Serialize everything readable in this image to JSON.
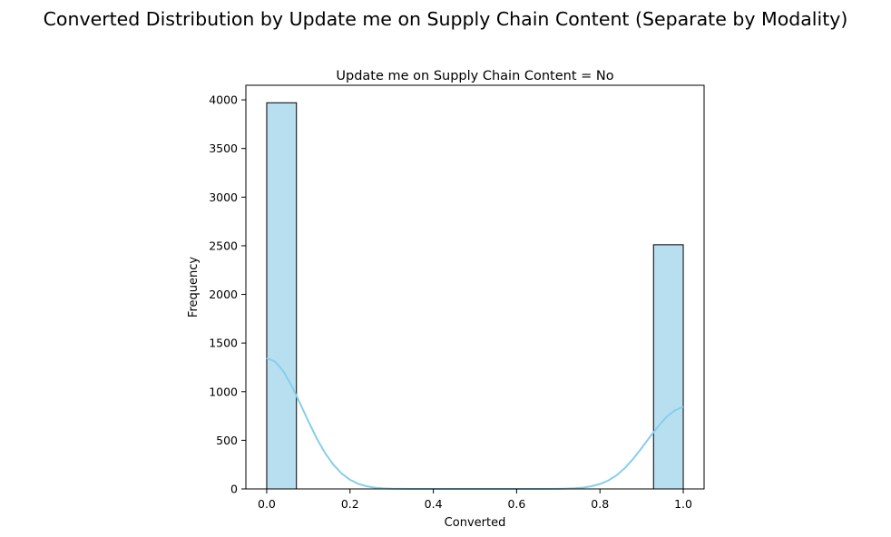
{
  "chart_data": {
    "type": "bar",
    "subtype": "histogram-with-kde",
    "suptitle": "Converted Distribution by Update me on Supply Chain Content (Separate by Modality)",
    "title": "Update me on Supply Chain Content = No",
    "xlabel": "Converted",
    "ylabel": "Frequency",
    "xlim": [
      -0.05,
      1.05
    ],
    "ylim": [
      0,
      4150
    ],
    "x_ticks": [
      0.0,
      0.2,
      0.4,
      0.6,
      0.8,
      1.0
    ],
    "x_tick_labels": [
      "0.0",
      "0.2",
      "0.4",
      "0.6",
      "0.8",
      "1.0"
    ],
    "y_ticks": [
      0,
      500,
      1000,
      1500,
      2000,
      2500,
      3000,
      3500,
      4000
    ],
    "y_tick_labels": [
      "0",
      "500",
      "1000",
      "1500",
      "2000",
      "2500",
      "3000",
      "3500",
      "4000"
    ],
    "bins": [
      {
        "x0": 0.0,
        "x1": 0.0714,
        "value": 3970
      },
      {
        "x0": 0.9286,
        "x1": 1.0,
        "value": 2510
      }
    ],
    "kde": {
      "x": [
        0.0,
        0.02,
        0.04,
        0.06,
        0.08,
        0.1,
        0.12,
        0.14,
        0.16,
        0.18,
        0.2,
        0.22,
        0.24,
        0.26,
        0.28,
        0.3,
        0.35,
        0.4,
        0.5,
        0.6,
        0.65,
        0.7,
        0.72,
        0.74,
        0.76,
        0.78,
        0.8,
        0.82,
        0.84,
        0.86,
        0.88,
        0.9,
        0.92,
        0.94,
        0.96,
        0.98,
        1.0
      ],
      "y": [
        1345,
        1310,
        1210,
        1060,
        880,
        695,
        520,
        370,
        250,
        158,
        94,
        52,
        27,
        13,
        6,
        2,
        0,
        0,
        0,
        0,
        0,
        1,
        3,
        7,
        14,
        28,
        50,
        86,
        140,
        215,
        310,
        420,
        535,
        645,
        740,
        808,
        845
      ]
    },
    "colors": {
      "bar_fill": "#b7dff0",
      "bar_edge": "#000000",
      "kde_line": "#87ceeb"
    },
    "grid": false,
    "legend": "none"
  }
}
